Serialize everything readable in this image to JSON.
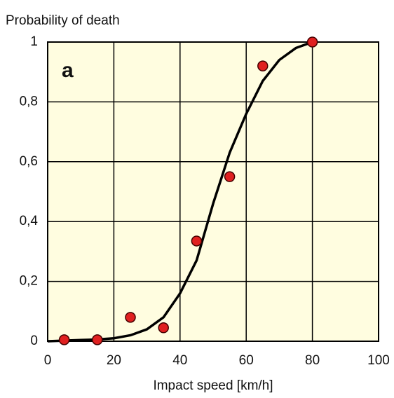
{
  "chart_data": {
    "type": "scatter",
    "title": "Probability of death",
    "annotation": "a",
    "x_label": "Impact speed [km/h]",
    "xlim": [
      0,
      100
    ],
    "ylim": [
      0,
      1
    ],
    "xticks": [
      0,
      20,
      40,
      60,
      80,
      100
    ],
    "yticks": [
      0,
      {
        "value": 0.2,
        "label": "0,2"
      },
      {
        "value": 0.4,
        "label": "0,4"
      },
      {
        "value": 0.6,
        "label": "0,6"
      },
      {
        "value": 0.8,
        "label": "0,8"
      },
      1
    ],
    "grid": true,
    "background": "#fffde0",
    "series": [
      {
        "type": "line",
        "color": "#000000",
        "x": [
          0,
          5,
          10,
          15,
          20,
          25,
          30,
          35,
          40,
          45,
          50,
          55,
          60,
          65,
          70,
          75,
          80
        ],
        "values": [
          0,
          0.002,
          0.004,
          0.006,
          0.01,
          0.02,
          0.04,
          0.08,
          0.16,
          0.27,
          0.46,
          0.63,
          0.76,
          0.87,
          0.94,
          0.98,
          1
        ]
      },
      {
        "type": "scatter",
        "color": "#e02020",
        "x": [
          5,
          15,
          25,
          35,
          45,
          55,
          65,
          80
        ],
        "values": [
          0.005,
          0.005,
          0.08,
          0.045,
          0.335,
          0.55,
          0.92,
          1
        ]
      }
    ]
  }
}
